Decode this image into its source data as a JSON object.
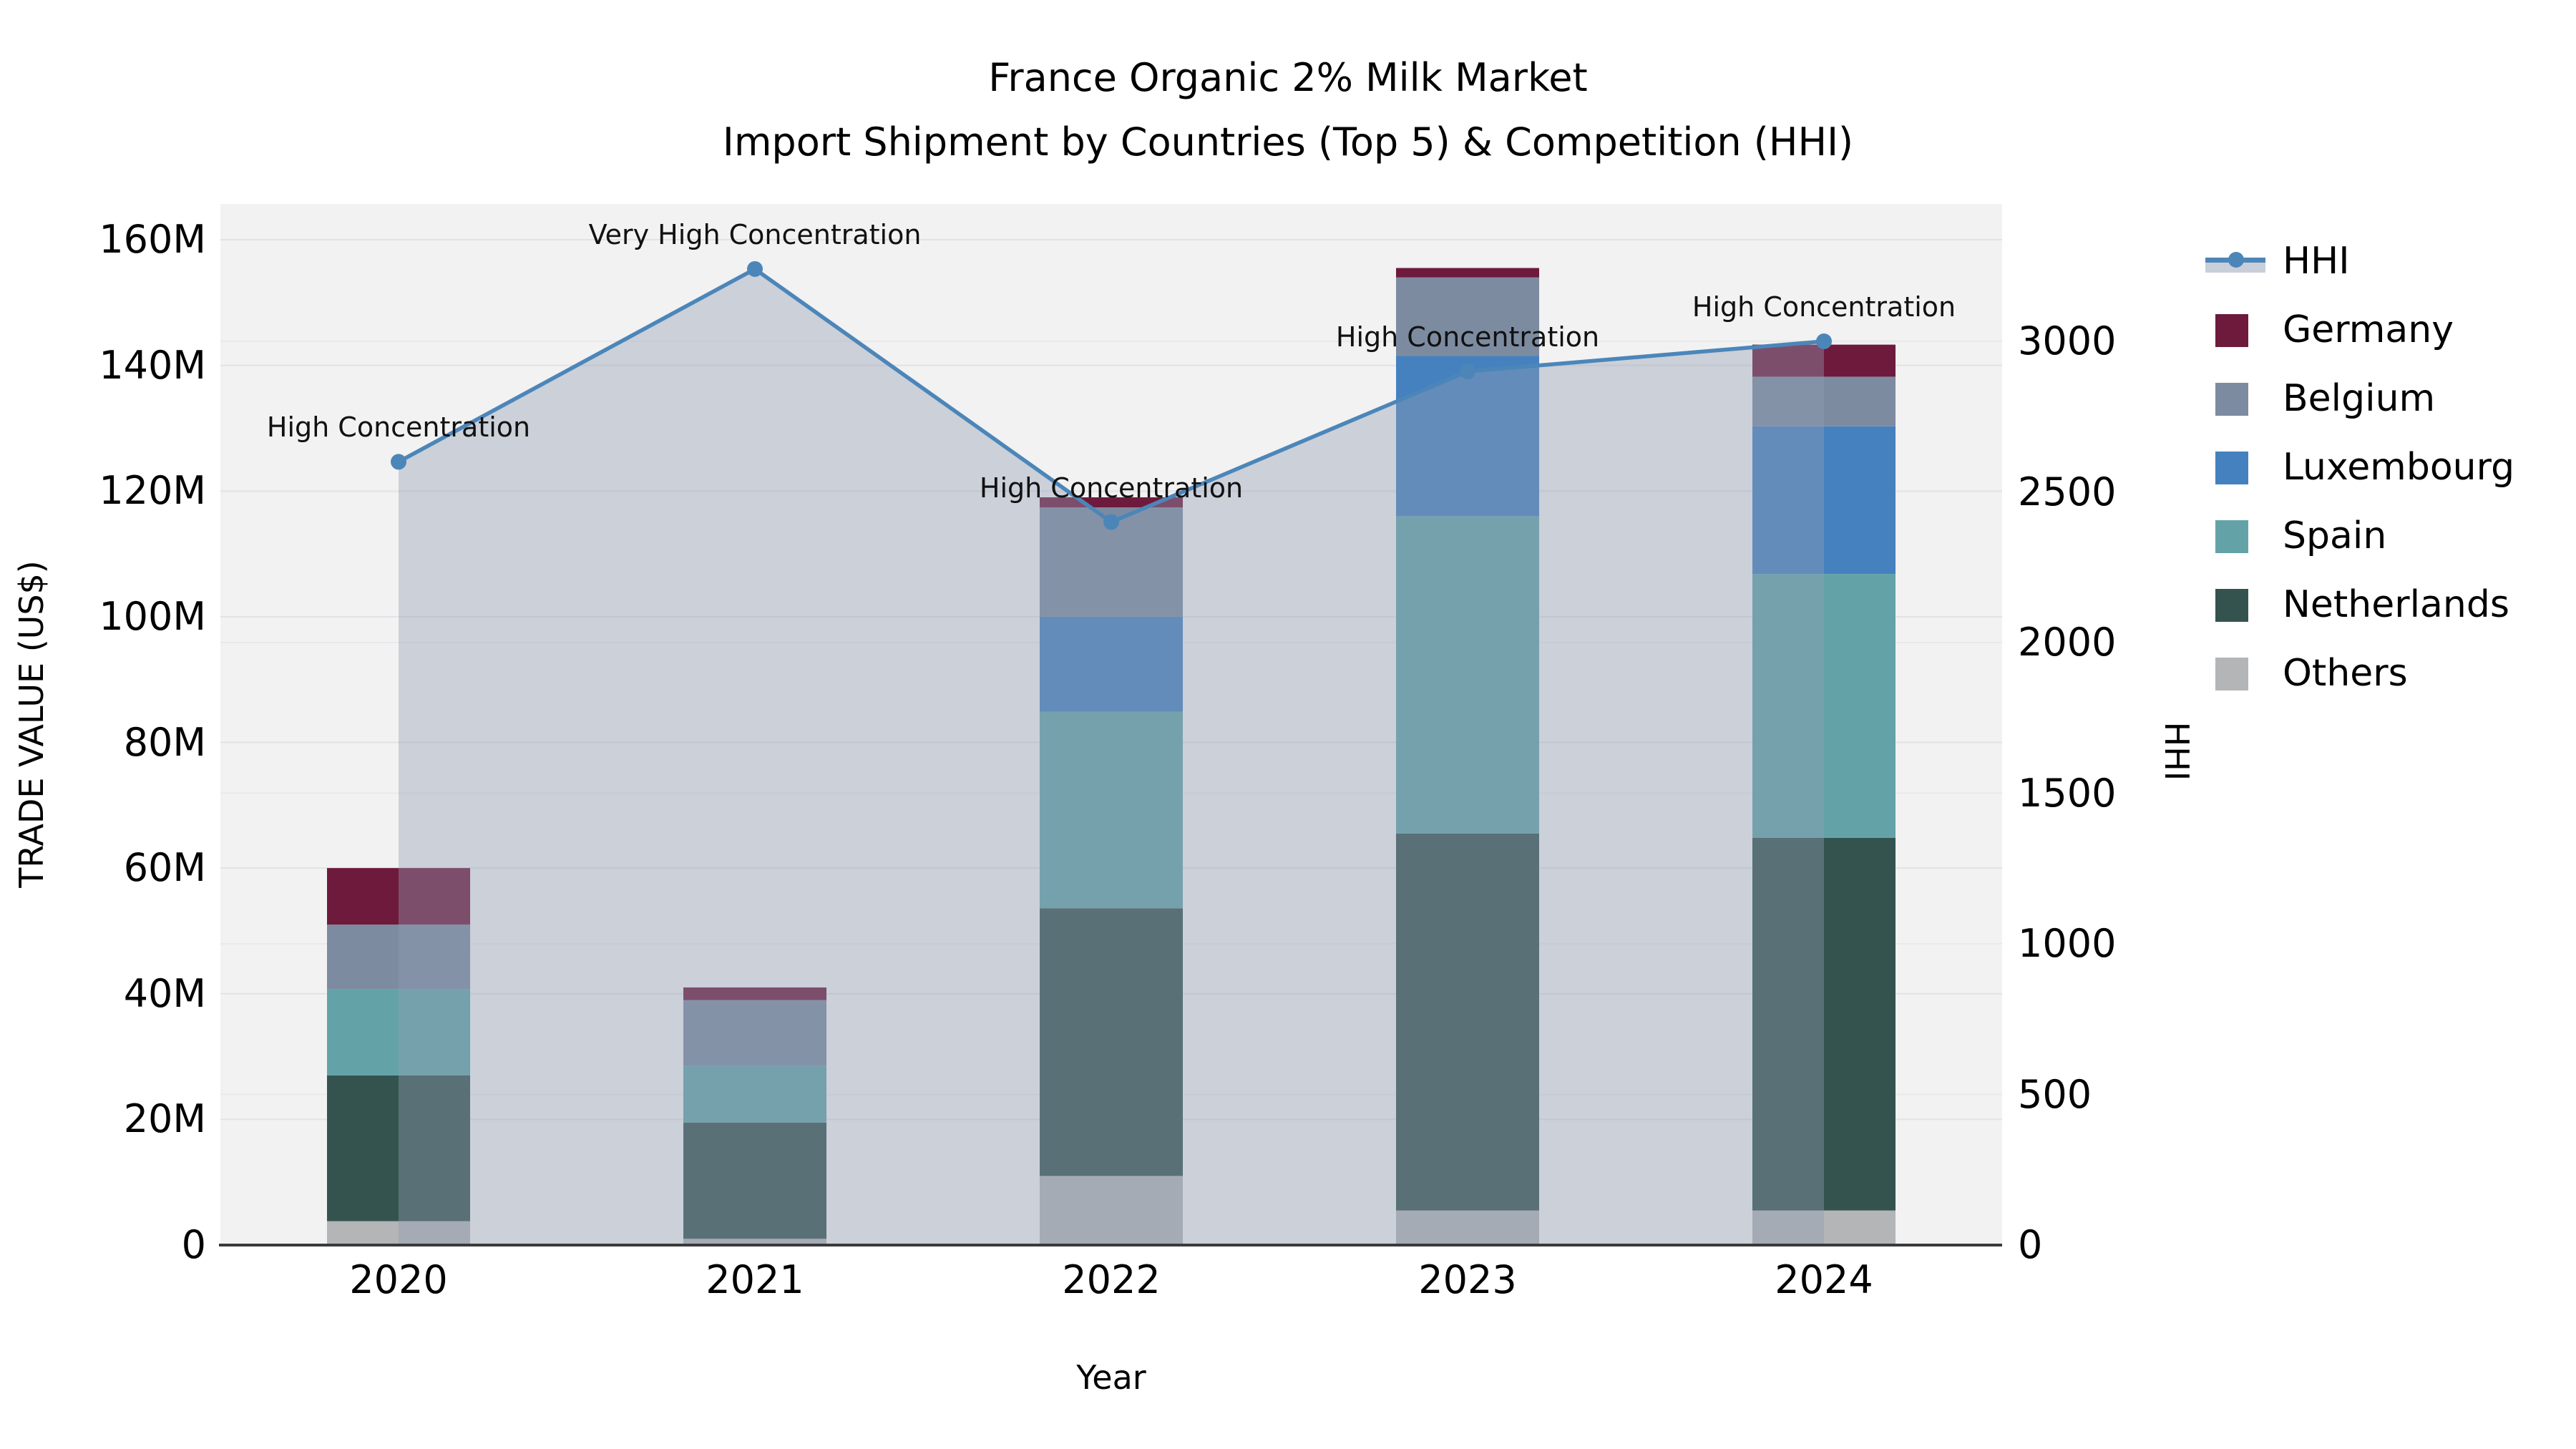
{
  "title": {
    "line1": "France Organic 2% Milk Market",
    "line2": "Import Shipment by Countries (Top 5) & Competition (HHI)"
  },
  "axes": {
    "left": {
      "label": "TRADE VALUE (US$)",
      "ticks": [
        "0",
        "20M",
        "40M",
        "60M",
        "80M",
        "100M",
        "120M",
        "140M",
        "160M"
      ],
      "tick_step_millions": 20
    },
    "right": {
      "label": "HHI",
      "ticks": [
        "0",
        "500",
        "1000",
        "1500",
        "2000",
        "2500",
        "3000"
      ],
      "tick_step": 500
    },
    "x": {
      "label": "Year"
    }
  },
  "legend": {
    "items": [
      {
        "key": "hhi",
        "label": "HHI",
        "type": "line"
      },
      {
        "key": "germany",
        "label": "Germany",
        "type": "patch"
      },
      {
        "key": "belgium",
        "label": "Belgium",
        "type": "patch"
      },
      {
        "key": "luxembourg",
        "label": "Luxembourg",
        "type": "patch"
      },
      {
        "key": "spain",
        "label": "Spain",
        "type": "patch"
      },
      {
        "key": "netherlands",
        "label": "Netherlands",
        "type": "patch"
      },
      {
        "key": "others",
        "label": "Others",
        "type": "patch"
      }
    ]
  },
  "chart_data": {
    "type": "combo-stacked-bar-line",
    "categories": [
      "2020",
      "2021",
      "2022",
      "2023",
      "2024"
    ],
    "bar_unit": "million US$",
    "stack_order_bottom_to_top": [
      "others",
      "netherlands",
      "spain",
      "luxembourg",
      "belgium",
      "germany"
    ],
    "series": [
      {
        "name": "Others",
        "key": "others",
        "values": [
          3.8,
          1.0,
          11.0,
          5.5,
          5.5
        ]
      },
      {
        "name": "Netherlands",
        "key": "netherlands",
        "values": [
          23.2,
          18.5,
          42.6,
          60.0,
          59.3
        ]
      },
      {
        "name": "Spain",
        "key": "spain",
        "values": [
          13.7,
          9.0,
          31.3,
          50.5,
          42.0
        ]
      },
      {
        "name": "Luxembourg",
        "key": "luxembourg",
        "values": [
          0.0,
          0.0,
          15.1,
          25.5,
          23.5
        ]
      },
      {
        "name": "Belgium",
        "key": "belgium",
        "values": [
          10.3,
          10.5,
          17.4,
          12.5,
          7.9
        ]
      },
      {
        "name": "Germany",
        "key": "germany",
        "values": [
          9.0,
          2.0,
          1.6,
          1.5,
          5.1
        ]
      }
    ],
    "bar_totals_millions": [
      60.0,
      41.0,
      119.0,
      155.5,
      143.3
    ],
    "line_series": {
      "name": "HHI",
      "axis": "right",
      "values": [
        2600,
        3240,
        2400,
        2900,
        3000
      ],
      "area_fill": true
    },
    "left_axis_range_millions": [
      0,
      165.7
    ],
    "right_axis_range": [
      0,
      3445
    ],
    "grid": true,
    "legend_position": "right"
  },
  "annotations": [
    {
      "year": "2020",
      "text": "High Concentration"
    },
    {
      "year": "2021",
      "text": "Very High Concentration"
    },
    {
      "year": "2022",
      "text": "High Concentration"
    },
    {
      "year": "2023",
      "text": "High Concentration"
    },
    {
      "year": "2024",
      "text": "High Concentration"
    }
  ],
  "colors": {
    "germany": "#6E1A3C",
    "belgium": "#7C8BA0",
    "luxembourg": "#4581BE",
    "spain": "#63A3A8",
    "netherlands": "#34534F",
    "others": "#B3B5B6",
    "hhi_line": "#4C86B9",
    "hhi_fill": "rgba(146,158,180,0.40)",
    "plot_bg": "#F2F2F2",
    "grid_left": "#E2E2E4",
    "grid_right": "#E9E9EB",
    "axis_line": "#3A3A3A",
    "text": "#000000"
  }
}
